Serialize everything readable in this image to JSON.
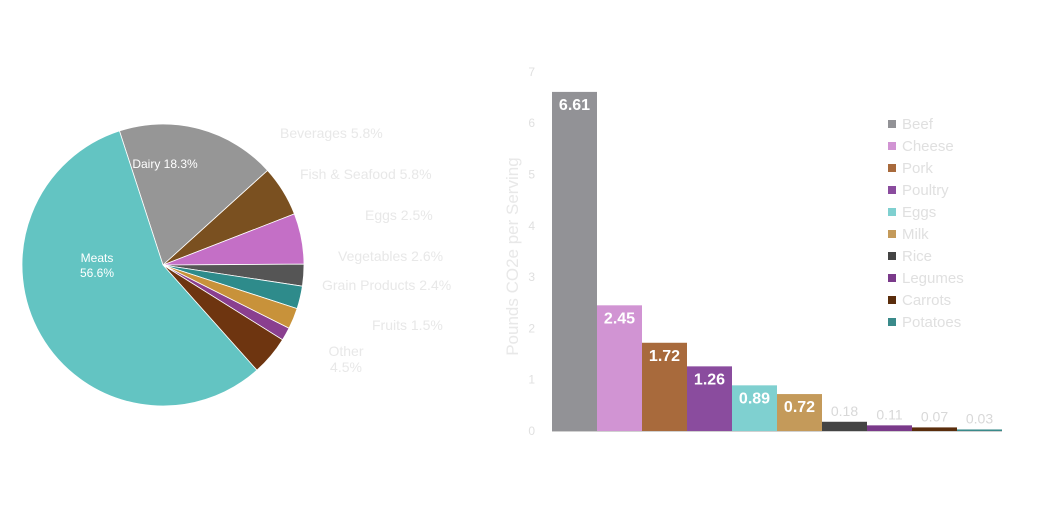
{
  "chart_data": [
    {
      "type": "pie",
      "slices": [
        {
          "label": "Meats",
          "value": 56.6,
          "display": "56.6%",
          "color": "#63c4c2"
        },
        {
          "label": "Dairy",
          "value": 18.3,
          "display": "18.3%",
          "color": "#969696"
        },
        {
          "label": "Beverages",
          "value": 5.8,
          "display": "5.8%",
          "color": "#7a5020"
        },
        {
          "label": "Fish & Seafood",
          "value": 5.8,
          "display": "5.8%",
          "color": "#c46fc6"
        },
        {
          "label": "Eggs",
          "value": 2.5,
          "display": "2.5%",
          "color": "#555555"
        },
        {
          "label": "Vegetables",
          "value": 2.6,
          "display": "2.6%",
          "color": "#2e8b8b"
        },
        {
          "label": "Grain Products",
          "value": 2.4,
          "display": "2.4%",
          "color": "#c8923a"
        },
        {
          "label": "Fruits",
          "value": 1.5,
          "display": "1.5%",
          "color": "#8a3f8f"
        },
        {
          "label": "Other",
          "value": 4.5,
          "display": "4.5%",
          "color": "#6e3510"
        }
      ]
    },
    {
      "type": "bar",
      "ylabel": "Pounds CO2e per Serving",
      "ylim": [
        0,
        7
      ],
      "yticks": [
        "0",
        "1",
        "2",
        "3",
        "4",
        "5",
        "6",
        "7"
      ],
      "legend_position": "top-right",
      "categories": [
        "Beef",
        "Cheese",
        "Pork",
        "Poultry",
        "Eggs",
        "Milk",
        "Rice",
        "Legumes",
        "Carrots",
        "Potatoes"
      ],
      "values": [
        6.61,
        2.45,
        1.72,
        1.26,
        0.89,
        0.72,
        0.18,
        0.11,
        0.07,
        0.03
      ],
      "value_labels": [
        "6.61",
        "2.45",
        "1.72",
        "1.26",
        "0.89",
        "0.72",
        "0.18",
        "0.11",
        "0.07",
        "0.03"
      ],
      "colors": [
        "#929296",
        "#d194d3",
        "#a86a3c",
        "#8a4c9e",
        "#7fd0d0",
        "#c49a5a",
        "#444444",
        "#7a3a8a",
        "#5a2d0c",
        "#3a8a8a"
      ]
    }
  ]
}
